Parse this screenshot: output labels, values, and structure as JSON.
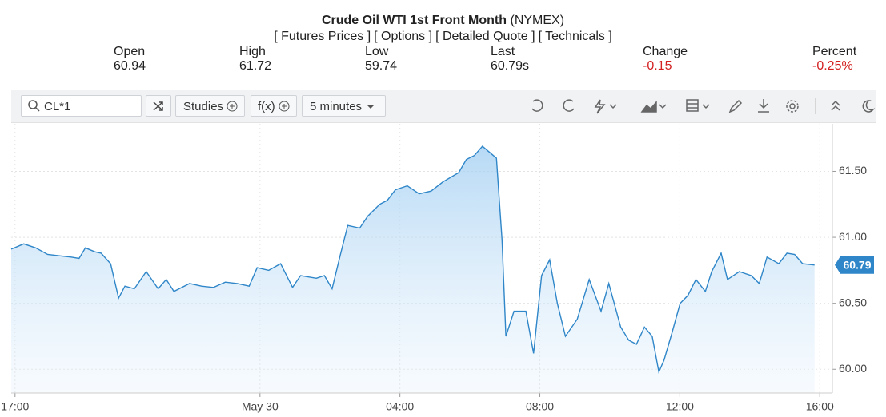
{
  "header": {
    "title": "Crude Oil WTI 1st Front Month",
    "exchange": "(NYMEX)",
    "links": [
      "[ Futures Prices ]",
      "[ Options ]",
      "[ Detailed Quote ]",
      "[ Technicals ]"
    ],
    "quote": [
      {
        "label": "Open",
        "value": "60.94"
      },
      {
        "label": "High",
        "value": "61.72"
      },
      {
        "label": "Low",
        "value": "59.74"
      },
      {
        "label": "Last",
        "value": "60.79s"
      },
      {
        "label": "Change",
        "value": "-0.15"
      },
      {
        "label": "Percent",
        "value": "-0.25%"
      }
    ]
  },
  "toolbar": {
    "symbol": "CL*1",
    "studies": "Studies",
    "functions": "f(x)",
    "interval": "5 minutes"
  },
  "chart_data": {
    "type": "line",
    "color": "#2f86c8",
    "grid": true,
    "x": [
      -0.11,
      0.25,
      0.59,
      0.93,
      1.27,
      1.6,
      1.83,
      2.01,
      2.28,
      2.46,
      2.73,
      2.96,
      3.14,
      3.41,
      3.75,
      4.09,
      4.32,
      4.54,
      4.99,
      5.33,
      5.67,
      6.01,
      6.35,
      6.69,
      6.92,
      7.25,
      7.59,
      7.93,
      8.16,
      8.61,
      8.84,
      9.06,
      9.29,
      9.51,
      9.85,
      10.08,
      10.42,
      10.64,
      10.87,
      11.21,
      11.55,
      11.89,
      12.23,
      12.68,
      12.9,
      13.13,
      13.36,
      13.58,
      13.76,
      13.92,
      14.03,
      14.26,
      14.6,
      14.82,
      15.05,
      15.28,
      15.5,
      15.73,
      16.07,
      16.41,
      16.75,
      16.97,
      17.31,
      17.54,
      17.76,
      17.99,
      18.21,
      18.4,
      18.55,
      18.78,
      19.01,
      19.23,
      19.46,
      19.73,
      19.91,
      20.18,
      20.36,
      20.7,
      21.04,
      21.27,
      21.49,
      21.83,
      22.06,
      22.28,
      22.51,
      22.85
    ],
    "values": [
      60.91,
      60.95,
      60.92,
      60.87,
      60.86,
      60.85,
      60.84,
      60.92,
      60.89,
      60.88,
      60.8,
      60.54,
      60.63,
      60.61,
      60.74,
      60.61,
      60.68,
      60.59,
      60.65,
      60.63,
      60.62,
      60.66,
      60.65,
      60.63,
      60.77,
      60.75,
      60.8,
      60.62,
      60.71,
      60.69,
      60.71,
      60.61,
      60.86,
      61.09,
      61.07,
      61.16,
      61.25,
      61.28,
      61.36,
      61.39,
      61.33,
      61.35,
      61.42,
      61.49,
      61.59,
      61.62,
      61.69,
      61.64,
      61.6,
      60.98,
      60.25,
      60.44,
      60.44,
      60.12,
      60.71,
      60.83,
      60.5,
      60.25,
      60.38,
      60.68,
      60.44,
      60.65,
      60.32,
      60.22,
      60.19,
      60.32,
      60.25,
      59.98,
      60.07,
      60.28,
      60.5,
      60.56,
      60.68,
      60.59,
      60.74,
      60.88,
      60.68,
      60.74,
      60.71,
      60.65,
      60.85,
      60.8,
      60.88,
      60.87,
      60.8,
      60.79
    ],
    "last_price": {
      "value": 60.79,
      "label": "60.79"
    },
    "xlim": [
      -0.11,
      23.36
    ],
    "xticks": [
      {
        "value": 0,
        "label": "17:00"
      },
      {
        "value": 7,
        "label": "May 30"
      },
      {
        "value": 11,
        "label": "04:00"
      },
      {
        "value": 15,
        "label": "08:00"
      },
      {
        "value": 19,
        "label": "12:00"
      },
      {
        "value": 23,
        "label": "16:00"
      }
    ],
    "ylim": [
      59.82,
      61.86
    ],
    "yticks": [
      {
        "value": 60,
        "label": "60.00"
      },
      {
        "value": 60.5,
        "label": "60.50"
      },
      {
        "value": 61,
        "label": "61.00"
      },
      {
        "value": 61.5,
        "label": "61.50"
      }
    ]
  }
}
